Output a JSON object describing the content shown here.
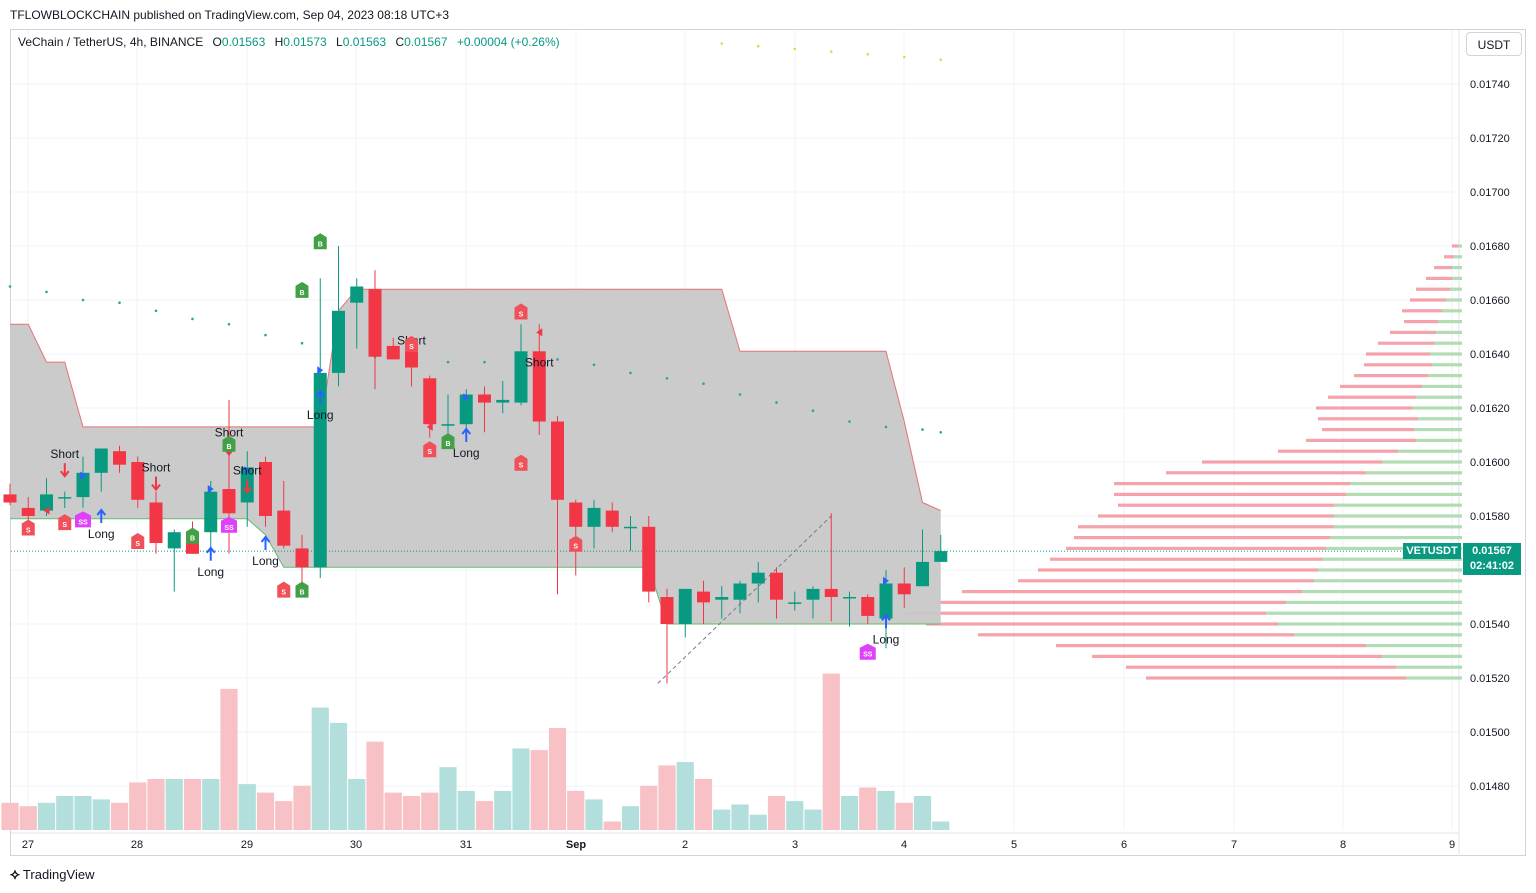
{
  "header": {
    "publisher_line": "TFLOWBLOCKCHAIN published on TradingView.com, Sep 04, 2023 08:18 UTC+3"
  },
  "legend": {
    "symbol": "VeChain / TetherUS, 4h, BINANCE",
    "open_label": "O",
    "open": "0.01563",
    "high_label": "H",
    "high": "0.01573",
    "low_label": "L",
    "low": "0.01563",
    "close_label": "C",
    "close": "0.01567",
    "change": "+0.00004 (+0.26%)"
  },
  "currency_button": "USDT",
  "last_price": {
    "symbol": "VETUSDT",
    "price": "0.01567",
    "countdown": "02:41:02"
  },
  "footer": {
    "brand": "TradingView"
  },
  "colors": {
    "up": "#089981",
    "down": "#f23645",
    "volume_up": "#b2dfdb",
    "volume_down": "#f7c1c5",
    "cloud": "#c8c8c8",
    "accent_magenta": "#e040fb",
    "signal_blue": "#2962ff"
  },
  "chart_data": {
    "type": "candlestick",
    "ylim": [
      0.01465,
      0.01755
    ],
    "y_ticks": [
      "0.01480",
      "0.01500",
      "0.01520",
      "0.01540",
      "0.01560",
      "0.01580",
      "0.01600",
      "0.01620",
      "0.01640",
      "0.01660",
      "0.01680",
      "0.01700",
      "0.01720",
      "0.01740"
    ],
    "x_ticks": [
      "27",
      "28",
      "29",
      "30",
      "31",
      "Sep",
      "2",
      "3",
      "4",
      "5",
      "6",
      "7",
      "8",
      "9"
    ],
    "candles": [
      {
        "o": 0.01588,
        "h": 0.01592,
        "l": 0.01584,
        "c": 0.01585
      },
      {
        "o": 0.01583,
        "h": 0.01587,
        "l": 0.01578,
        "c": 0.0158
      },
      {
        "o": 0.01582,
        "h": 0.01594,
        "l": 0.0158,
        "c": 0.01588
      },
      {
        "o": 0.01587,
        "h": 0.01589,
        "l": 0.01583,
        "c": 0.01587
      },
      {
        "o": 0.01587,
        "h": 0.01602,
        "l": 0.01583,
        "c": 0.01596
      },
      {
        "o": 0.01596,
        "h": 0.01605,
        "l": 0.01589,
        "c": 0.01605
      },
      {
        "o": 0.01604,
        "h": 0.01606,
        "l": 0.01596,
        "c": 0.01599
      },
      {
        "o": 0.016,
        "h": 0.01602,
        "l": 0.01583,
        "c": 0.01586
      },
      {
        "o": 0.01585,
        "h": 0.01589,
        "l": 0.01566,
        "c": 0.0157
      },
      {
        "o": 0.01568,
        "h": 0.01575,
        "l": 0.01552,
        "c": 0.01574
      },
      {
        "o": 0.01573,
        "h": 0.01578,
        "l": 0.01566,
        "c": 0.01566
      },
      {
        "o": 0.01574,
        "h": 0.01593,
        "l": 0.01568,
        "c": 0.01589
      },
      {
        "o": 0.0159,
        "h": 0.01623,
        "l": 0.01566,
        "c": 0.01581
      },
      {
        "o": 0.01585,
        "h": 0.01604,
        "l": 0.01576,
        "c": 0.01598
      },
      {
        "o": 0.016,
        "h": 0.01602,
        "l": 0.01576,
        "c": 0.0158
      },
      {
        "o": 0.01582,
        "h": 0.01593,
        "l": 0.01568,
        "c": 0.01569
      },
      {
        "o": 0.01568,
        "h": 0.01573,
        "l": 0.01555,
        "c": 0.01561
      },
      {
        "o": 0.01561,
        "h": 0.01668,
        "l": 0.01557,
        "c": 0.01633
      },
      {
        "o": 0.01633,
        "h": 0.0168,
        "l": 0.01628,
        "c": 0.01656
      },
      {
        "o": 0.01659,
        "h": 0.01668,
        "l": 0.01642,
        "c": 0.01665
      },
      {
        "o": 0.01664,
        "h": 0.01671,
        "l": 0.01627,
        "c": 0.01639
      },
      {
        "o": 0.01643,
        "h": 0.01646,
        "l": 0.0164,
        "c": 0.01638
      },
      {
        "o": 0.01643,
        "h": 0.01646,
        "l": 0.01628,
        "c": 0.01635
      },
      {
        "o": 0.01631,
        "h": 0.01632,
        "l": 0.01609,
        "c": 0.01614
      },
      {
        "o": 0.01614,
        "h": 0.01625,
        "l": 0.01606,
        "c": 0.01614
      },
      {
        "o": 0.01614,
        "h": 0.01627,
        "l": 0.01612,
        "c": 0.01625
      },
      {
        "o": 0.01625,
        "h": 0.01628,
        "l": 0.01611,
        "c": 0.01622
      },
      {
        "o": 0.01622,
        "h": 0.0163,
        "l": 0.01618,
        "c": 0.01623
      },
      {
        "o": 0.01622,
        "h": 0.01651,
        "l": 0.01621,
        "c": 0.01641
      },
      {
        "o": 0.01641,
        "h": 0.01651,
        "l": 0.0161,
        "c": 0.01615
      },
      {
        "o": 0.01615,
        "h": 0.01617,
        "l": 0.01551,
        "c": 0.01586
      },
      {
        "o": 0.01585,
        "h": 0.01586,
        "l": 0.01558,
        "c": 0.01576
      },
      {
        "o": 0.01576,
        "h": 0.01586,
        "l": 0.01568,
        "c": 0.01583
      },
      {
        "o": 0.01582,
        "h": 0.01585,
        "l": 0.01574,
        "c": 0.01576
      },
      {
        "o": 0.01576,
        "h": 0.0158,
        "l": 0.01567,
        "c": 0.01576
      },
      {
        "o": 0.01576,
        "h": 0.0158,
        "l": 0.01548,
        "c": 0.01552
      },
      {
        "o": 0.0155,
        "h": 0.01553,
        "l": 0.01518,
        "c": 0.0154
      },
      {
        "o": 0.0154,
        "h": 0.01553,
        "l": 0.01535,
        "c": 0.01553
      },
      {
        "o": 0.01552,
        "h": 0.01556,
        "l": 0.0154,
        "c": 0.01548
      },
      {
        "o": 0.01549,
        "h": 0.01554,
        "l": 0.01542,
        "c": 0.0155
      },
      {
        "o": 0.01549,
        "h": 0.01556,
        "l": 0.01544,
        "c": 0.01555
      },
      {
        "o": 0.01555,
        "h": 0.01563,
        "l": 0.01548,
        "c": 0.01559
      },
      {
        "o": 0.01559,
        "h": 0.01561,
        "l": 0.01542,
        "c": 0.01549
      },
      {
        "o": 0.01548,
        "h": 0.01552,
        "l": 0.01545,
        "c": 0.01548
      },
      {
        "o": 0.01549,
        "h": 0.01554,
        "l": 0.01542,
        "c": 0.01553
      },
      {
        "o": 0.01553,
        "h": 0.01581,
        "l": 0.01541,
        "c": 0.0155
      },
      {
        "o": 0.0155,
        "h": 0.01552,
        "l": 0.01539,
        "c": 0.0155
      },
      {
        "o": 0.0155,
        "h": 0.01551,
        "l": 0.0154,
        "c": 0.01543
      },
      {
        "o": 0.01542,
        "h": 0.0156,
        "l": 0.01531,
        "c": 0.01555
      },
      {
        "o": 0.01555,
        "h": 0.01561,
        "l": 0.01546,
        "c": 0.01551
      },
      {
        "o": 0.01554,
        "h": 0.01575,
        "l": 0.01554,
        "c": 0.01563
      },
      {
        "o": 0.01563,
        "h": 0.01573,
        "l": 0.01563,
        "c": 0.01567
      }
    ],
    "volume_relative": [
      0.16,
      0.14,
      0.16,
      0.2,
      0.2,
      0.18,
      0.16,
      0.28,
      0.3,
      0.3,
      0.3,
      0.3,
      0.83,
      0.27,
      0.22,
      0.17,
      0.26,
      0.72,
      0.63,
      0.3,
      0.52,
      0.22,
      0.2,
      0.22,
      0.37,
      0.23,
      0.17,
      0.23,
      0.48,
      0.47,
      0.6,
      0.23,
      0.18,
      0.05,
      0.14,
      0.26,
      0.38,
      0.4,
      0.3,
      0.12,
      0.15,
      0.09,
      0.2,
      0.17,
      0.12,
      0.92,
      0.2,
      0.25,
      0.23,
      0.16,
      0.2,
      0.05
    ],
    "cloud_upper": [
      0.01651,
      0.01651,
      0.01637,
      0.01637,
      0.01613,
      0.01613,
      0.01613,
      0.01613,
      0.01613,
      0.01613,
      0.01613,
      0.01613,
      0.01613,
      0.01613,
      0.01613,
      0.01613,
      0.01613,
      0.01613,
      0.01656,
      0.01664,
      0.01664,
      0.01664,
      0.01664,
      0.01664,
      0.01664,
      0.01664,
      0.01664,
      0.01664,
      0.01664,
      0.01664,
      0.01664,
      0.01664,
      0.01664,
      0.01664,
      0.01664,
      0.01664,
      0.01664,
      0.01664,
      0.01664,
      0.01664,
      0.01641,
      0.01641,
      0.01641,
      0.01641,
      0.01641,
      0.01641,
      0.01641,
      0.01641,
      0.01641,
      0.01615,
      0.01585,
      0.01582
    ],
    "cloud_lower": [
      0.01579,
      0.01579,
      0.01579,
      0.01579,
      0.01579,
      0.01579,
      0.01579,
      0.01579,
      0.01579,
      0.01579,
      0.01579,
      0.01579,
      0.01579,
      0.01579,
      0.01573,
      0.01561,
      0.01561,
      0.01561,
      0.01561,
      0.01561,
      0.01561,
      0.01561,
      0.01561,
      0.01561,
      0.01561,
      0.01561,
      0.01561,
      0.01561,
      0.01561,
      0.01561,
      0.01561,
      0.01561,
      0.01561,
      0.01561,
      0.01561,
      0.01561,
      0.0154,
      0.0154,
      0.0154,
      0.0154,
      0.0154,
      0.0154,
      0.0154,
      0.0154,
      0.0154,
      0.0154,
      0.0154,
      0.0154,
      0.0154,
      0.0154,
      0.0154,
      0.0154
    ],
    "trend_dots": [
      {
        "i": 0,
        "y": 0.01665
      },
      {
        "i": 2,
        "y": 0.01663
      },
      {
        "i": 4,
        "y": 0.0166
      },
      {
        "i": 6,
        "y": 0.01659
      },
      {
        "i": 8,
        "y": 0.01656
      },
      {
        "i": 10,
        "y": 0.01653
      },
      {
        "i": 12,
        "y": 0.01651
      },
      {
        "i": 14,
        "y": 0.01647
      },
      {
        "i": 16,
        "y": 0.01644
      },
      {
        "i": 18,
        "y": 0.0164
      },
      {
        "i": 20,
        "y": 0.01639
      },
      {
        "i": 22,
        "y": 0.01638
      },
      {
        "i": 24,
        "y": 0.01637
      },
      {
        "i": 26,
        "y": 0.01637
      },
      {
        "i": 28,
        "y": 0.0164
      },
      {
        "i": 30,
        "y": 0.01638
      },
      {
        "i": 32,
        "y": 0.01636
      },
      {
        "i": 34,
        "y": 0.01633
      },
      {
        "i": 36,
        "y": 0.01631
      },
      {
        "i": 38,
        "y": 0.01629
      },
      {
        "i": 40,
        "y": 0.01625
      },
      {
        "i": 42,
        "y": 0.01622
      },
      {
        "i": 44,
        "y": 0.01619
      },
      {
        "i": 46,
        "y": 0.01615
      },
      {
        "i": 48,
        "y": 0.01613
      },
      {
        "i": 50,
        "y": 0.01612
      },
      {
        "i": 51,
        "y": 0.01611
      }
    ],
    "yellow_dots": [
      {
        "i": 39,
        "y": 0.01755
      },
      {
        "i": 41,
        "y": 0.01754
      },
      {
        "i": 43,
        "y": 0.01753
      },
      {
        "i": 45,
        "y": 0.01752
      },
      {
        "i": 47,
        "y": 0.01751
      },
      {
        "i": 49,
        "y": 0.0175
      },
      {
        "i": 51,
        "y": 0.01749
      }
    ],
    "signals": [
      {
        "i": 3,
        "text": "Short",
        "y": 0.01597,
        "kind": "short"
      },
      {
        "i": 5,
        "text": "Long",
        "y": 0.0158,
        "kind": "long"
      },
      {
        "i": 8,
        "text": "Short",
        "y": 0.01592,
        "kind": "short"
      },
      {
        "i": 11,
        "text": "Long",
        "y": 0.01566,
        "kind": "long"
      },
      {
        "i": 12,
        "text": "Short",
        "y": 0.01605,
        "kind": "short"
      },
      {
        "i": 13,
        "text": "Short",
        "y": 0.01591,
        "kind": "short"
      },
      {
        "i": 14,
        "text": "Long",
        "y": 0.0157,
        "kind": "long"
      },
      {
        "i": 17,
        "text": "Long",
        "y": 0.01624,
        "kind": "long"
      },
      {
        "i": 22,
        "text": "Short",
        "y": 0.01639,
        "kind": "short"
      },
      {
        "i": 25,
        "text": "Long",
        "y": 0.0161,
        "kind": "long"
      },
      {
        "i": 29,
        "text": "Short",
        "y": 0.01631,
        "kind": "short"
      },
      {
        "i": 48,
        "text": "Long",
        "y": 0.01541,
        "kind": "long"
      }
    ],
    "markers": [
      {
        "i": 1,
        "text": "S",
        "y": 0.01575,
        "kind": "sell"
      },
      {
        "i": 3,
        "text": "S",
        "y": 0.01577,
        "kind": "sell"
      },
      {
        "i": 4,
        "text": "SS",
        "y": 0.01578,
        "kind": "ss"
      },
      {
        "i": 7,
        "text": "S",
        "y": 0.0157,
        "kind": "sell"
      },
      {
        "i": 10,
        "text": "B",
        "y": 0.01572,
        "kind": "buy"
      },
      {
        "i": 12,
        "text": "SS",
        "y": 0.01576,
        "kind": "ss"
      },
      {
        "i": 12,
        "text": "B",
        "y": 0.01606,
        "kind": "buy"
      },
      {
        "i": 15,
        "text": "S",
        "y": 0.01552,
        "kind": "sell"
      },
      {
        "i": 16,
        "text": "B",
        "y": 0.01552,
        "kind": "buy"
      },
      {
        "i": 16,
        "text": "B",
        "y": 0.01663,
        "kind": "buy"
      },
      {
        "i": 17,
        "text": "B",
        "y": 0.01681,
        "kind": "buy"
      },
      {
        "i": 22,
        "text": "S",
        "y": 0.01643,
        "kind": "sell"
      },
      {
        "i": 23,
        "text": "S",
        "y": 0.01604,
        "kind": "sell"
      },
      {
        "i": 24,
        "text": "B",
        "y": 0.01607,
        "kind": "buy"
      },
      {
        "i": 28,
        "text": "S",
        "y": 0.01655,
        "kind": "sell"
      },
      {
        "i": 28,
        "text": "S",
        "y": 0.01599,
        "kind": "sell"
      },
      {
        "i": 31,
        "text": "S",
        "y": 0.01569,
        "kind": "sell"
      },
      {
        "i": 47,
        "text": "SS",
        "y": 0.01529,
        "kind": "ss"
      }
    ],
    "triangles": [
      {
        "i": 2,
        "y": 0.01582,
        "dir": "left"
      },
      {
        "i": 4,
        "y": 0.01595,
        "dir": "right"
      },
      {
        "i": 11,
        "y": 0.0159,
        "dir": "right"
      },
      {
        "i": 12,
        "y": 0.01584,
        "dir": "left"
      },
      {
        "i": 13,
        "y": 0.01597,
        "dir": "right"
      },
      {
        "i": 14,
        "y": 0.01582,
        "dir": "left"
      },
      {
        "i": 17,
        "y": 0.01634,
        "dir": "right"
      },
      {
        "i": 20,
        "y": 0.01646,
        "dir": "left"
      },
      {
        "i": 23,
        "y": 0.01613,
        "dir": "left"
      },
      {
        "i": 25,
        "y": 0.01624,
        "dir": "right"
      },
      {
        "i": 29,
        "y": 0.01648,
        "dir": "left"
      },
      {
        "i": 29,
        "y": 0.01618,
        "dir": "left"
      },
      {
        "i": 48,
        "y": 0.01556,
        "dir": "right"
      }
    ],
    "trend_lines": [
      {
        "i1": 35.5,
        "y1": 0.01518,
        "i2": 45,
        "y2": 0.0158,
        "style": "dashed"
      }
    ],
    "volume_profile": {
      "levels": [
        0.0168,
        0.01676,
        0.01672,
        0.01668,
        0.01664,
        0.0166,
        0.01656,
        0.01652,
        0.01648,
        0.01644,
        0.0164,
        0.01636,
        0.01632,
        0.01628,
        0.01624,
        0.0162,
        0.01616,
        0.01612,
        0.01608,
        0.01604,
        0.016,
        0.01596,
        0.01592,
        0.01588,
        0.01584,
        0.0158,
        0.01576,
        0.01572,
        0.01568,
        0.01564,
        0.0156,
        0.01556,
        0.01552,
        0.01548,
        0.01544,
        0.0154,
        0.01536,
        0.01532,
        0.01528,
        0.01524,
        0.0152
      ],
      "up": [
        4,
        8,
        10,
        10,
        12,
        16,
        20,
        24,
        26,
        28,
        32,
        30,
        34,
        40,
        46,
        50,
        44,
        48,
        46,
        64,
        80,
        96,
        112,
        116,
        128,
        128,
        128,
        132,
        136,
        140,
        144,
        148,
        160,
        176,
        196,
        184,
        168,
        96,
        80,
        66,
        56
      ],
      "down": [
        6,
        10,
        18,
        26,
        34,
        36,
        40,
        34,
        46,
        56,
        64,
        68,
        74,
        82,
        88,
        96,
        100,
        92,
        110,
        120,
        180,
        200,
        236,
        232,
        216,
        236,
        256,
        256,
        260,
        272,
        280,
        296,
        340,
        352,
        360,
        352,
        316,
        310,
        290,
        270,
        260
      ]
    }
  }
}
